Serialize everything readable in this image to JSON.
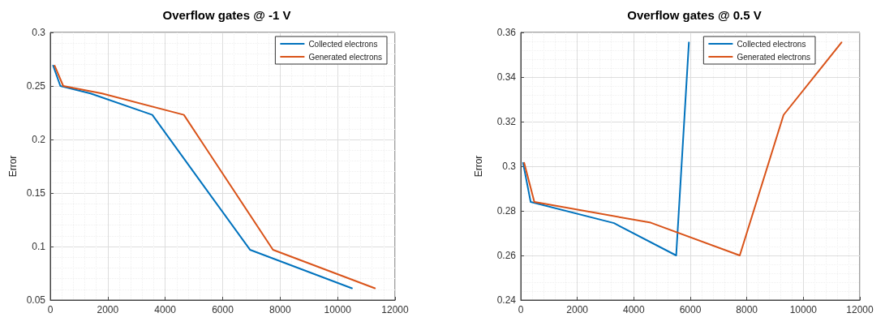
{
  "chart_data": [
    {
      "type": "line",
      "title": "Overflow gates @ -1 V",
      "ylabel": "Error",
      "xlim": [
        0,
        12000
      ],
      "xticks": [
        0,
        2000,
        4000,
        6000,
        8000,
        10000,
        12000
      ],
      "ylim": [
        0.05,
        0.3
      ],
      "yticks": [
        0.05,
        0.1,
        0.15,
        0.2,
        0.25,
        0.3
      ],
      "grid": true,
      "legend": "top right",
      "marker": "none",
      "line_style": "solid",
      "series": [
        {
          "name": "Collected electrons",
          "color": "#0072bd",
          "x": [
            100,
            350,
            1400,
            3550,
            6950,
            10500
          ],
          "values": [
            0.269,
            0.25,
            0.243,
            0.223,
            0.097,
            0.061
          ]
        },
        {
          "name": "Generated electrons",
          "color": "#d95319",
          "x": [
            150,
            450,
            1800,
            4650,
            7750,
            11300
          ],
          "values": [
            0.269,
            0.25,
            0.243,
            0.223,
            0.097,
            0.061
          ]
        }
      ]
    },
    {
      "type": "line",
      "title": "Overflow gates @ 0.5 V",
      "ylabel": "Error",
      "xlim": [
        0,
        12000
      ],
      "xticks": [
        0,
        2000,
        4000,
        6000,
        8000,
        10000,
        12000
      ],
      "ylim": [
        0.24,
        0.36
      ],
      "yticks": [
        0.24,
        0.26,
        0.28,
        0.3,
        0.32,
        0.34,
        0.36
      ],
      "grid": true,
      "legend": "top right",
      "marker": "none",
      "line_style": "solid",
      "series": [
        {
          "name": "Collected electrons",
          "color": "#0072bd",
          "x": [
            80,
            350,
            3300,
            5500,
            5950
          ],
          "values": [
            0.3015,
            0.284,
            0.2745,
            0.26,
            0.3555
          ]
        },
        {
          "name": "Generated electrons",
          "color": "#d95319",
          "x": [
            120,
            480,
            4600,
            7750,
            9300,
            11350
          ],
          "values": [
            0.3015,
            0.284,
            0.2747,
            0.26,
            0.323,
            0.3555
          ]
        }
      ]
    }
  ]
}
